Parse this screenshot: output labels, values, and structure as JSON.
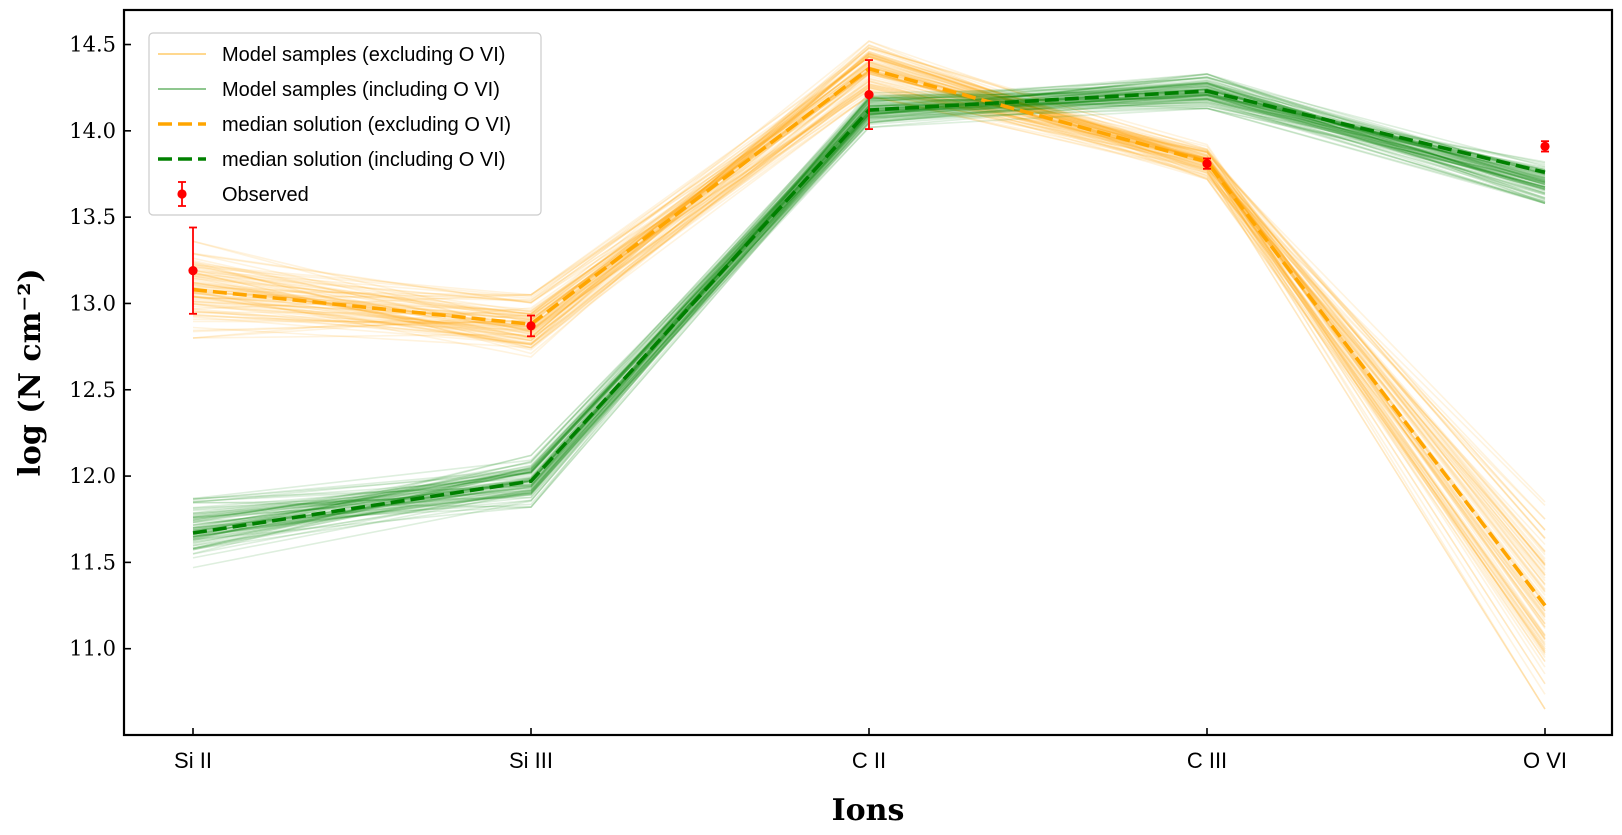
{
  "chart_data": {
    "type": "line",
    "categories": [
      "Si II",
      "Si III",
      "C II",
      "C III",
      "O VI"
    ],
    "xlabel": "Ions",
    "ylabel": "log (N cm⁻²)",
    "ylim": [
      10.5,
      14.7
    ],
    "yticks": [
      11.0,
      11.5,
      12.0,
      12.5,
      13.0,
      13.5,
      14.0,
      14.5
    ],
    "ytick_labels": [
      "11.0",
      "11.5",
      "12.0",
      "12.5",
      "13.0",
      "13.5",
      "14.0",
      "14.5"
    ],
    "grid": false,
    "legend_position": "top-left",
    "series": [
      {
        "name": "Model samples (excluding O VI)",
        "style": "sample-band",
        "color": "#ffa500",
        "center": [
          13.08,
          12.87,
          14.36,
          13.82,
          11.25
        ],
        "spread": [
          0.28,
          0.18,
          0.16,
          0.1,
          0.6
        ]
      },
      {
        "name": "Model samples (including O VI)",
        "style": "sample-band",
        "color": "#008000",
        "center": [
          11.67,
          11.97,
          14.12,
          14.23,
          13.7
        ],
        "spread": [
          0.2,
          0.15,
          0.1,
          0.1,
          0.12
        ]
      },
      {
        "name": "median solution (excluding O VI)",
        "style": "dashed",
        "color": "#ffa500",
        "values": [
          13.08,
          12.88,
          14.36,
          13.82,
          11.25
        ]
      },
      {
        "name": "median solution (including O VI)",
        "style": "dashed",
        "color": "#008000",
        "values": [
          11.67,
          11.97,
          14.12,
          14.23,
          13.76
        ]
      },
      {
        "name": "Observed",
        "style": "errorbar",
        "color": "#ff0000",
        "values": [
          13.19,
          12.87,
          14.21,
          13.81,
          13.91
        ],
        "errors": [
          0.25,
          0.06,
          0.2,
          0.03,
          0.03
        ]
      }
    ]
  }
}
